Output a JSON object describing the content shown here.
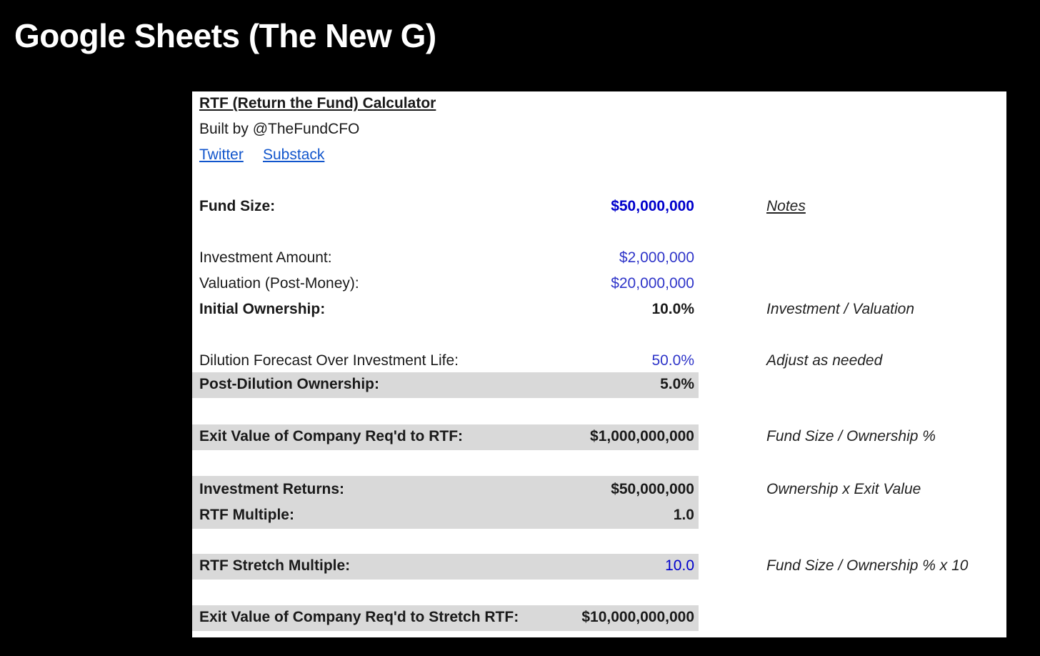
{
  "slide": {
    "title": "Google Sheets (The New G)"
  },
  "header": {
    "title": "RTF (Return the Fund) Calculator",
    "built_by": "Built by @TheFundCFO",
    "links": [
      "Twitter",
      "Substack"
    ]
  },
  "rows": {
    "fund_size": {
      "label": "Fund Size:",
      "value": "$50,000,000",
      "note": "Notes"
    },
    "investment_amount": {
      "label": "Investment Amount:",
      "value": "$2,000,000"
    },
    "valuation": {
      "label": "Valuation (Post-Money):",
      "value": "$20,000,000"
    },
    "initial_ownership": {
      "label": "Initial Ownership:",
      "value": "10.0%",
      "note": "Investment / Valuation"
    },
    "dilution": {
      "label": "Dilution Forecast Over Investment Life:",
      "value": "50.0%",
      "note": "Adjust as needed"
    },
    "post_dilution": {
      "label": "Post-Dilution Ownership:",
      "value": "5.0%"
    },
    "exit_value": {
      "label": "Exit Value of Company Req'd to RTF:",
      "value": "$1,000,000,000",
      "note": "Fund Size / Ownership %"
    },
    "investment_returns": {
      "label": "Investment Returns:",
      "value": "$50,000,000",
      "note": "Ownership x Exit Value"
    },
    "rtf_multiple": {
      "label": "RTF Multiple:",
      "value": "1.0"
    },
    "stretch_multiple": {
      "label": "RTF Stretch Multiple:",
      "value": "10.0",
      "note": "Fund Size / Ownership % x 10"
    },
    "stretch_exit": {
      "label": "Exit Value of Company Req'd to Stretch RTF:",
      "value": "$10,000,000,000"
    }
  },
  "colors": {
    "background": "#000000",
    "sheet": "#ffffff",
    "band": "#d9d9d9",
    "input_blue": "#0000cc",
    "link_blue": "#1155cc"
  }
}
